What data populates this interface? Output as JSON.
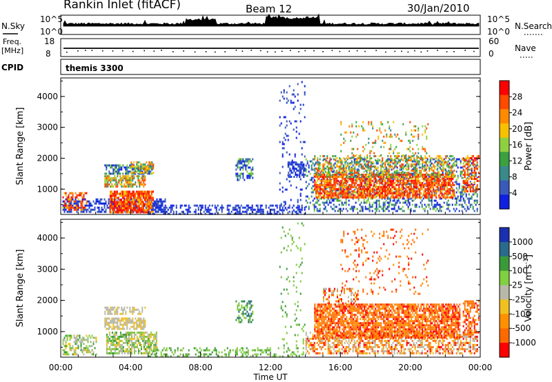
{
  "header": {
    "title": "Rankin Inlet (fitACF)",
    "beam": "Beam 12",
    "date": "30/Jan/2010"
  },
  "panels": {
    "nsky_label": "N.Sky",
    "nsky_ticks": [
      "10^5",
      "10^0"
    ],
    "nsearch_label": "N.Search",
    "nsearch_ticks": [
      "10^5",
      "10^0"
    ],
    "freq_label": "Freq.",
    "freq_unit": "[MHz]",
    "freq_ticks": [
      "18",
      "8"
    ],
    "nave_label": "Nave",
    "nave_ticks": [
      "60",
      "0"
    ],
    "cpid_label": "CPID",
    "cpid_value": "themis 3300"
  },
  "chart_data": [
    {
      "type": "heatmap",
      "name": "power",
      "ylabel": "Slant Range [km]",
      "yticks": [
        1000,
        2000,
        3000,
        4000
      ],
      "colorbar_label": "Power [dB]",
      "colorbar_ticks": [
        "28",
        "24",
        "20",
        "16",
        "12",
        "8",
        "4"
      ],
      "colorbar_colors": [
        "#ff0000",
        "#ff4a00",
        "#ff8a00",
        "#f7c000",
        "#8fd040",
        "#3aa040",
        "#3a8a8a",
        "#3a5aba",
        "#1020e0"
      ]
    },
    {
      "type": "heatmap",
      "name": "velocity",
      "ylabel": "Slant Range [km]",
      "yticks": [
        1000,
        2000,
        3000,
        4000
      ],
      "colorbar_label": "Velocity [m s",
      "colorbar_unit_sup": "-1",
      "colorbar_ticks": [
        "1000",
        "500",
        "100",
        "25",
        "-25",
        "-100",
        "-500",
        "-1000"
      ],
      "colorbar_colors": [
        "#1a30b0",
        "#2a6a8a",
        "#3a9a3a",
        "#80d040",
        "#b8b8a8",
        "#f0c020",
        "#ff9000",
        "#ff6a00",
        "#ff0000"
      ],
      "xlabel": "Time UT",
      "xticks": [
        "00:00",
        "04:00",
        "08:00",
        "12:00",
        "16:00",
        "20:00",
        "00:00"
      ]
    }
  ],
  "colors": {
    "power_blue": "#1c3cd8",
    "power_green": "#3aa040",
    "power_orange": "#ff8a00",
    "power_red": "#ff1800",
    "vel_grey": "#b8b8a8",
    "vel_orange": "#ff7a10",
    "vel_green": "#80c040"
  }
}
